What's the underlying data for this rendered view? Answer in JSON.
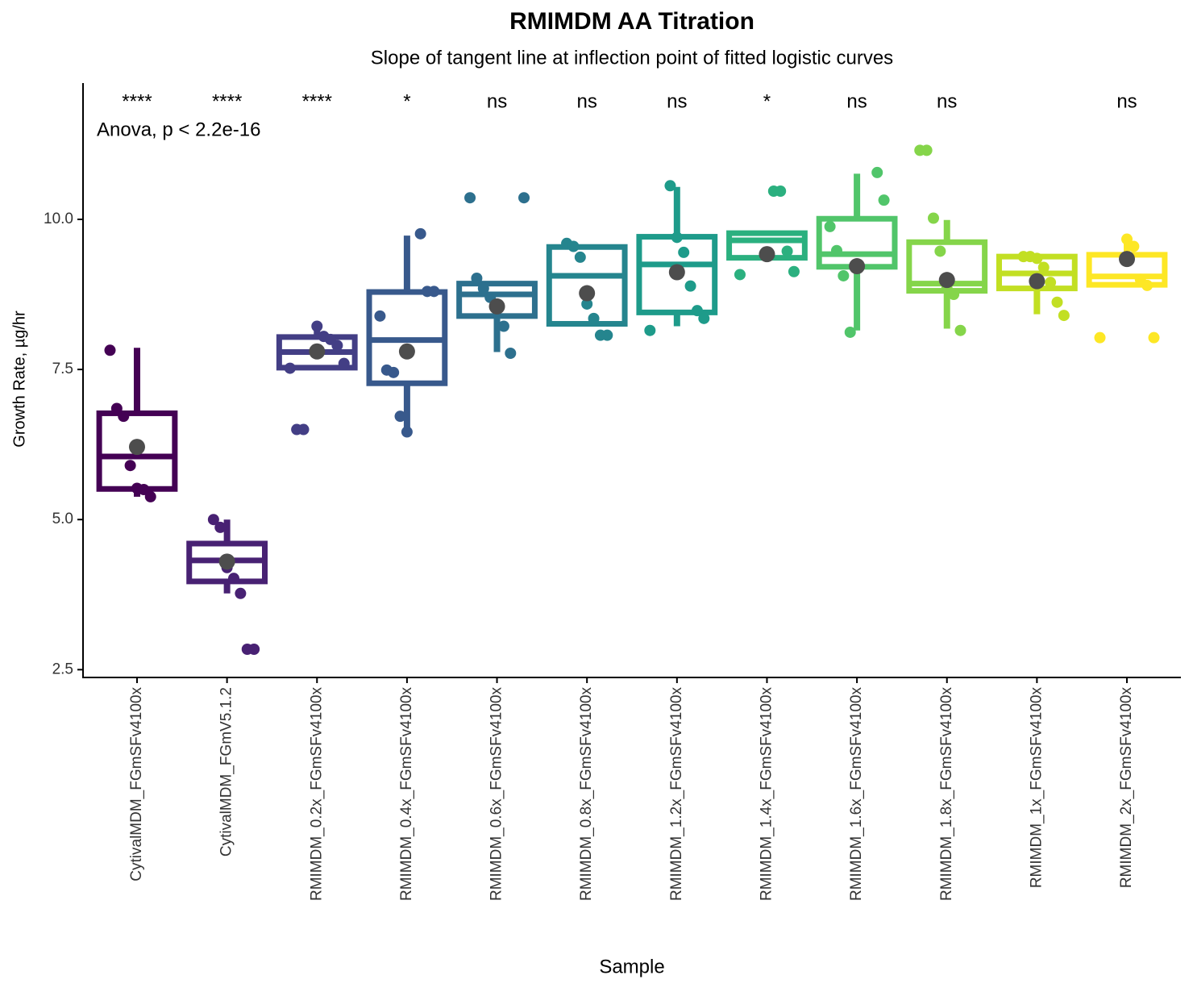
{
  "chart_data": {
    "type": "boxplot",
    "title": "RMIMDM AA Titration",
    "subtitle": "Slope of tangent line at inflection point of fitted logistic curves",
    "x_label": "Sample",
    "y_label": "Growth Rate, µg/hr",
    "annotation": "Anova, p < 2.2e-16",
    "categories": [
      "CytivalMDM_FGmSFv4100x",
      "CytivalMDM_FGmV5.1.2",
      "RMIMDM_0.2x_FGmSFv4100x",
      "RMIMDM_0.4x_FGmSFv4100x",
      "RMIMDM_0.6x_FGmSFv4100x",
      "RMIMDM_0.8x_FGmSFv4100x",
      "RMIMDM_1.2x_FGmSFv4100x",
      "RMIMDM_1.4x_FGmSFv4100x",
      "RMIMDM_1.6x_FGmSFv4100x",
      "RMIMDM_1.8x_FGmSFv4100x",
      "RMIMDM_1x_FGmSFv4100x",
      "RMIMDM_2x_FGmSFv4100x"
    ],
    "significance": [
      "****",
      "****",
      "****",
      "*",
      "ns",
      "ns",
      "ns",
      "*",
      "ns",
      "ns",
      null,
      "ns"
    ],
    "colors": [
      "#440154",
      "#482173",
      "#433e85",
      "#38598c",
      "#2d708e",
      "#25858e",
      "#1e9b8a",
      "#2bb07f",
      "#51c56a",
      "#85d54a",
      "#c2df23",
      "#fde725"
    ],
    "mean_color": "#4d4d4d",
    "boxes": [
      {
        "min": 5.38,
        "q1": 5.51,
        "median": 6.05,
        "q3": 6.77,
        "max": 7.86,
        "mean": 6.21,
        "points": [
          7.82,
          6.85,
          6.72,
          5.9,
          5.52,
          5.5,
          5.38
        ]
      },
      {
        "min": 3.77,
        "q1": 3.97,
        "median": 4.32,
        "q3": 4.6,
        "max": 5.0,
        "mean": 4.3,
        "points": [
          5.0,
          4.87,
          4.2,
          4.02,
          3.77,
          2.84,
          2.84
        ]
      },
      {
        "min": 7.52,
        "q1": 7.53,
        "median": 7.79,
        "q3": 8.04,
        "max": 8.22,
        "mean": 7.8,
        "points": [
          8.22,
          8.05,
          8.0,
          7.9,
          7.6,
          7.52,
          6.5,
          6.5
        ]
      },
      {
        "min": 6.47,
        "q1": 7.27,
        "median": 7.99,
        "q3": 8.79,
        "max": 9.73,
        "mean": 7.8,
        "points": [
          9.76,
          8.8,
          8.8,
          8.39,
          7.49,
          7.45,
          6.72,
          6.46
        ]
      },
      {
        "min": 7.79,
        "q1": 8.39,
        "median": 8.75,
        "q3": 8.93,
        "max": 8.93,
        "mean": 8.55,
        "points": [
          10.36,
          10.36,
          9.02,
          8.85,
          8.7,
          8.5,
          8.22,
          7.77
        ]
      },
      {
        "min": 8.26,
        "q1": 8.26,
        "median": 9.06,
        "q3": 9.54,
        "max": 9.54,
        "mean": 8.77,
        "points": [
          9.6,
          9.55,
          9.37,
          8.59,
          8.35,
          8.07,
          8.07
        ]
      },
      {
        "min": 8.22,
        "q1": 8.45,
        "median": 9.25,
        "q3": 9.71,
        "max": 10.54,
        "mean": 9.12,
        "points": [
          10.56,
          9.7,
          9.45,
          8.89,
          8.48,
          8.35,
          8.15
        ]
      },
      {
        "min": 9.36,
        "q1": 9.36,
        "median": 9.65,
        "q3": 9.77,
        "max": 9.77,
        "mean": 9.42,
        "points": [
          10.47,
          10.47,
          9.47,
          9.13,
          9.08
        ]
      },
      {
        "min": 8.15,
        "q1": 9.21,
        "median": 9.42,
        "q3": 10.01,
        "max": 10.76,
        "mean": 9.22,
        "points": [
          10.78,
          10.32,
          9.88,
          9.48,
          9.06,
          8.12
        ]
      },
      {
        "min": 8.18,
        "q1": 8.81,
        "median": 8.93,
        "q3": 9.62,
        "max": 9.99,
        "mean": 8.99,
        "points": [
          11.15,
          11.15,
          10.02,
          9.47,
          8.85,
          8.75,
          8.15
        ]
      },
      {
        "min": 8.42,
        "q1": 8.85,
        "median": 9.1,
        "q3": 9.38,
        "max": 9.38,
        "mean": 8.97,
        "points": [
          9.38,
          9.38,
          9.35,
          9.2,
          8.95,
          8.62,
          8.4
        ]
      },
      {
        "min": 8.91,
        "q1": 8.91,
        "median": 9.05,
        "q3": 9.41,
        "max": 9.65,
        "mean": 9.34,
        "points": [
          9.67,
          9.55,
          9.0,
          8.9,
          8.03,
          8.03
        ]
      }
    ],
    "ylim": [
      2.37,
      12.27
    ],
    "yticks": [
      2.5,
      {
        "value": 5,
        "label": "5.0"
      },
      7.5,
      {
        "value": 10,
        "label": "10.0"
      }
    ],
    "grid": false
  }
}
